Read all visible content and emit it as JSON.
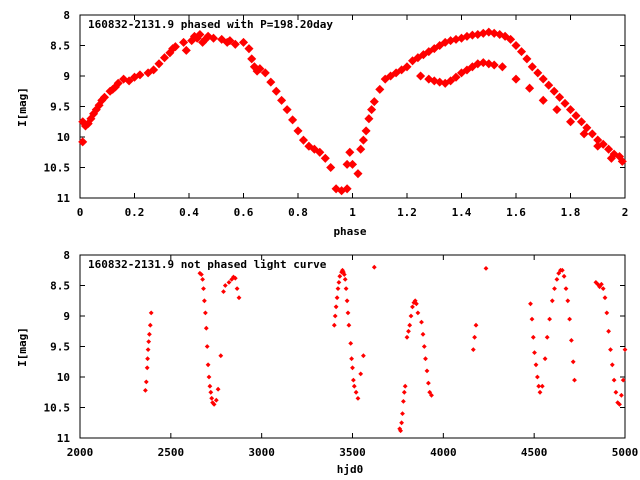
{
  "chart_data": [
    {
      "type": "scatter",
      "title": "160832-2131.9 phased with P=198.20day",
      "xlabel": "phase",
      "ylabel": "I[mag]",
      "xlim": [
        0,
        2
      ],
      "ylim": [
        8,
        11
      ],
      "y_inverted": true,
      "xticks": [
        0,
        0.2,
        0.4,
        0.6,
        0.8,
        1,
        1.2,
        1.4,
        1.6,
        1.8,
        2
      ],
      "xtick_labels": [
        "0",
        "0.2",
        "0.4",
        "0.6",
        "0.8",
        "1",
        "1.2",
        "1.4",
        "1.6",
        "1.8",
        "2"
      ],
      "yticks": [
        8,
        8.5,
        9,
        9.5,
        10,
        10.5,
        11
      ],
      "ytick_labels": [
        "8",
        "8.5",
        "9",
        "9.5",
        "10",
        "10.5",
        "11"
      ],
      "grid": false,
      "marker_color": "#ff0000",
      "points": [
        [
          0.01,
          10.08
        ],
        [
          0.01,
          9.75
        ],
        [
          0.02,
          9.82
        ],
        [
          0.03,
          9.78
        ],
        [
          0.04,
          9.7
        ],
        [
          0.05,
          9.62
        ],
        [
          0.06,
          9.55
        ],
        [
          0.07,
          9.48
        ],
        [
          0.08,
          9.4
        ],
        [
          0.09,
          9.35
        ],
        [
          0.11,
          9.25
        ],
        [
          0.12,
          9.22
        ],
        [
          0.13,
          9.18
        ],
        [
          0.14,
          9.12
        ],
        [
          0.16,
          9.05
        ],
        [
          0.18,
          9.08
        ],
        [
          0.2,
          9.02
        ],
        [
          0.22,
          8.98
        ],
        [
          0.25,
          8.95
        ],
        [
          0.27,
          8.9
        ],
        [
          0.29,
          8.8
        ],
        [
          0.31,
          8.7
        ],
        [
          0.33,
          8.62
        ],
        [
          0.34,
          8.55
        ],
        [
          0.35,
          8.52
        ],
        [
          0.38,
          8.45
        ],
        [
          0.39,
          8.58
        ],
        [
          0.41,
          8.42
        ],
        [
          0.42,
          8.35
        ],
        [
          0.43,
          8.38
        ],
        [
          0.44,
          8.32
        ],
        [
          0.45,
          8.45
        ],
        [
          0.46,
          8.4
        ],
        [
          0.47,
          8.35
        ],
        [
          0.49,
          8.38
        ],
        [
          0.52,
          8.4
        ],
        [
          0.54,
          8.45
        ],
        [
          0.55,
          8.42
        ],
        [
          0.57,
          8.48
        ],
        [
          0.6,
          8.45
        ],
        [
          0.62,
          8.55
        ],
        [
          0.63,
          8.72
        ],
        [
          0.64,
          8.85
        ],
        [
          0.65,
          8.92
        ],
        [
          0.66,
          8.88
        ],
        [
          0.68,
          8.95
        ],
        [
          0.7,
          9.1
        ],
        [
          0.72,
          9.25
        ],
        [
          0.74,
          9.4
        ],
        [
          0.76,
          9.55
        ],
        [
          0.78,
          9.72
        ],
        [
          0.8,
          9.9
        ],
        [
          0.82,
          10.05
        ],
        [
          0.84,
          10.15
        ],
        [
          0.86,
          10.2
        ],
        [
          0.88,
          10.25
        ],
        [
          0.9,
          10.35
        ],
        [
          0.92,
          10.5
        ],
        [
          0.94,
          10.85
        ],
        [
          0.96,
          10.88
        ],
        [
          0.98,
          10.85
        ],
        [
          0.98,
          10.45
        ],
        [
          0.99,
          10.25
        ],
        [
          1.0,
          10.45
        ],
        [
          1.02,
          10.6
        ],
        [
          1.03,
          10.2
        ],
        [
          1.04,
          10.05
        ],
        [
          1.05,
          9.9
        ],
        [
          1.06,
          9.7
        ],
        [
          1.07,
          9.55
        ],
        [
          1.08,
          9.42
        ],
        [
          1.1,
          9.22
        ],
        [
          1.12,
          9.05
        ],
        [
          1.14,
          9.0
        ],
        [
          1.16,
          8.95
        ],
        [
          1.18,
          8.9
        ],
        [
          1.2,
          8.85
        ],
        [
          1.22,
          8.75
        ],
        [
          1.24,
          8.7
        ],
        [
          1.26,
          8.65
        ],
        [
          1.28,
          8.6
        ],
        [
          1.3,
          8.55
        ],
        [
          1.32,
          8.5
        ],
        [
          1.34,
          8.45
        ],
        [
          1.36,
          8.42
        ],
        [
          1.38,
          8.4
        ],
        [
          1.4,
          8.38
        ],
        [
          1.42,
          8.35
        ],
        [
          1.44,
          8.33
        ],
        [
          1.46,
          8.32
        ],
        [
          1.48,
          8.3
        ],
        [
          1.5,
          8.28
        ],
        [
          1.52,
          8.3
        ],
        [
          1.54,
          8.32
        ],
        [
          1.56,
          8.35
        ],
        [
          1.58,
          8.4
        ],
        [
          1.6,
          8.5
        ],
        [
          1.62,
          8.6
        ],
        [
          1.64,
          8.72
        ],
        [
          1.66,
          8.85
        ],
        [
          1.68,
          8.95
        ],
        [
          1.7,
          9.05
        ],
        [
          1.72,
          9.15
        ],
        [
          1.74,
          9.25
        ],
        [
          1.76,
          9.35
        ],
        [
          1.78,
          9.45
        ],
        [
          1.8,
          9.55
        ],
        [
          1.82,
          9.65
        ],
        [
          1.84,
          9.75
        ],
        [
          1.86,
          9.85
        ],
        [
          1.88,
          9.95
        ],
        [
          1.9,
          10.05
        ],
        [
          1.92,
          10.12
        ],
        [
          1.94,
          10.2
        ],
        [
          1.96,
          10.28
        ],
        [
          1.98,
          10.32
        ],
        [
          1.25,
          9.0
        ],
        [
          1.28,
          9.05
        ],
        [
          1.3,
          9.08
        ],
        [
          1.32,
          9.1
        ],
        [
          1.34,
          9.12
        ],
        [
          1.36,
          9.08
        ],
        [
          1.38,
          9.02
        ],
        [
          1.4,
          8.95
        ],
        [
          1.42,
          8.9
        ],
        [
          1.44,
          8.85
        ],
        [
          1.46,
          8.8
        ],
        [
          1.48,
          8.78
        ],
        [
          1.5,
          8.8
        ],
        [
          1.52,
          8.82
        ],
        [
          1.55,
          8.85
        ],
        [
          1.6,
          9.05
        ],
        [
          1.65,
          9.2
        ],
        [
          1.7,
          9.4
        ],
        [
          1.75,
          9.55
        ],
        [
          1.8,
          9.75
        ],
        [
          1.85,
          9.95
        ],
        [
          1.9,
          10.15
        ],
        [
          1.95,
          10.35
        ],
        [
          1.99,
          10.4
        ]
      ]
    },
    {
      "type": "scatter",
      "title": "160832-2131.9 not phased light curve",
      "xlabel": "hjd0",
      "ylabel": "I[mag]",
      "xlim": [
        2000,
        5000
      ],
      "ylim": [
        8,
        11
      ],
      "y_inverted": true,
      "xticks": [
        2000,
        2500,
        3000,
        3500,
        4000,
        4500,
        5000
      ],
      "xtick_labels": [
        "2000",
        "2500",
        "3000",
        "3500",
        "4000",
        "4500",
        "5000"
      ],
      "yticks": [
        8,
        8.5,
        9,
        9.5,
        10,
        10.5,
        11
      ],
      "ytick_labels": [
        "8",
        "8.5",
        "9",
        "9.5",
        "10",
        "10.5",
        "11"
      ],
      "grid": false,
      "marker_color": "#ff0000",
      "points": [
        [
          2360,
          10.22
        ],
        [
          2365,
          10.08
        ],
        [
          2370,
          9.85
        ],
        [
          2372,
          9.7
        ],
        [
          2375,
          9.55
        ],
        [
          2378,
          9.42
        ],
        [
          2382,
          9.3
        ],
        [
          2387,
          9.15
        ],
        [
          2392,
          8.95
        ],
        [
          2660,
          8.3
        ],
        [
          2668,
          8.32
        ],
        [
          2675,
          8.4
        ],
        [
          2680,
          8.55
        ],
        [
          2685,
          8.75
        ],
        [
          2690,
          8.95
        ],
        [
          2695,
          9.2
        ],
        [
          2700,
          9.5
        ],
        [
          2705,
          9.8
        ],
        [
          2710,
          10.0
        ],
        [
          2715,
          10.15
        ],
        [
          2720,
          10.25
        ],
        [
          2725,
          10.35
        ],
        [
          2730,
          10.42
        ],
        [
          2738,
          10.45
        ],
        [
          2750,
          10.38
        ],
        [
          2760,
          10.2
        ],
        [
          2775,
          9.65
        ],
        [
          2790,
          8.6
        ],
        [
          2800,
          8.5
        ],
        [
          2820,
          8.45
        ],
        [
          2835,
          8.4
        ],
        [
          2845,
          8.36
        ],
        [
          2855,
          8.38
        ],
        [
          2865,
          8.55
        ],
        [
          2875,
          8.7
        ],
        [
          3400,
          9.15
        ],
        [
          3405,
          9.0
        ],
        [
          3410,
          8.85
        ],
        [
          3415,
          8.7
        ],
        [
          3420,
          8.55
        ],
        [
          3425,
          8.45
        ],
        [
          3430,
          8.35
        ],
        [
          3440,
          8.28
        ],
        [
          3445,
          8.25
        ],
        [
          3450,
          8.28
        ],
        [
          3455,
          8.32
        ],
        [
          3460,
          8.4
        ],
        [
          3465,
          8.55
        ],
        [
          3470,
          8.75
        ],
        [
          3475,
          8.95
        ],
        [
          3480,
          9.15
        ],
        [
          3490,
          9.45
        ],
        [
          3495,
          9.7
        ],
        [
          3500,
          9.85
        ],
        [
          3505,
          10.05
        ],
        [
          3510,
          10.15
        ],
        [
          3520,
          10.25
        ],
        [
          3530,
          10.35
        ],
        [
          3545,
          9.95
        ],
        [
          3560,
          9.65
        ],
        [
          3620,
          8.2
        ],
        [
          3760,
          10.85
        ],
        [
          3765,
          10.88
        ],
        [
          3770,
          10.75
        ],
        [
          3775,
          10.6
        ],
        [
          3780,
          10.4
        ],
        [
          3785,
          10.25
        ],
        [
          3790,
          10.15
        ],
        [
          3800,
          9.35
        ],
        [
          3808,
          9.25
        ],
        [
          3815,
          9.15
        ],
        [
          3822,
          9.0
        ],
        [
          3830,
          8.85
        ],
        [
          3838,
          8.78
        ],
        [
          3845,
          8.75
        ],
        [
          3852,
          8.8
        ],
        [
          3860,
          8.95
        ],
        [
          3880,
          9.1
        ],
        [
          3888,
          9.3
        ],
        [
          3895,
          9.5
        ],
        [
          3902,
          9.7
        ],
        [
          3910,
          9.9
        ],
        [
          3918,
          10.1
        ],
        [
          3925,
          10.25
        ],
        [
          3935,
          10.3
        ],
        [
          4165,
          9.55
        ],
        [
          4172,
          9.35
        ],
        [
          4180,
          9.15
        ],
        [
          4235,
          8.22
        ],
        [
          4480,
          8.8
        ],
        [
          4488,
          9.05
        ],
        [
          4495,
          9.35
        ],
        [
          4502,
          9.6
        ],
        [
          4510,
          9.8
        ],
        [
          4518,
          10.0
        ],
        [
          4525,
          10.15
        ],
        [
          4532,
          10.25
        ],
        [
          4545,
          10.15
        ],
        [
          4560,
          9.7
        ],
        [
          4572,
          9.35
        ],
        [
          4585,
          9.05
        ],
        [
          4600,
          8.75
        ],
        [
          4612,
          8.55
        ],
        [
          4625,
          8.4
        ],
        [
          4635,
          8.3
        ],
        [
          4645,
          8.25
        ],
        [
          4655,
          8.25
        ],
        [
          4665,
          8.35
        ],
        [
          4675,
          8.55
        ],
        [
          4685,
          8.75
        ],
        [
          4695,
          9.05
        ],
        [
          4705,
          9.4
        ],
        [
          4715,
          9.75
        ],
        [
          4722,
          10.05
        ],
        [
          4840,
          8.45
        ],
        [
          4850,
          8.48
        ],
        [
          4860,
          8.52
        ],
        [
          4870,
          8.48
        ],
        [
          4880,
          8.55
        ],
        [
          4890,
          8.7
        ],
        [
          4900,
          8.95
        ],
        [
          4910,
          9.25
        ],
        [
          4920,
          9.55
        ],
        [
          4930,
          9.8
        ],
        [
          4940,
          10.05
        ],
        [
          4950,
          10.25
        ],
        [
          4960,
          10.42
        ],
        [
          4970,
          10.45
        ],
        [
          4980,
          10.3
        ],
        [
          4990,
          10.05
        ],
        [
          5000,
          9.55
        ]
      ]
    }
  ]
}
